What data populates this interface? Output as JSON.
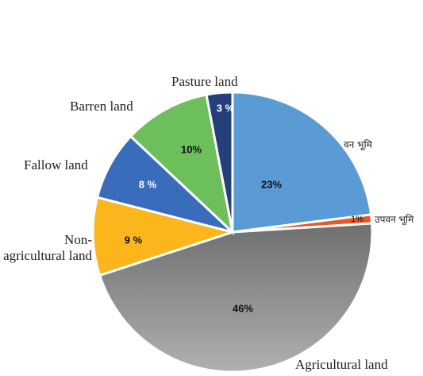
{
  "chart_data": {
    "type": "pie",
    "categories": [
      "वन भूमि",
      "उपवन भूमि",
      "Agricultural land",
      "Non-agricultural land",
      "Fallow land",
      "Barren land",
      "Pasture land"
    ],
    "values": [
      23,
      1,
      46,
      9,
      8,
      10,
      3
    ],
    "value_labels": [
      "23%",
      "1%",
      "46%",
      "9 %",
      "8 %",
      "10%",
      "3 %"
    ],
    "colors": [
      "#5b9bd5",
      "#e8582a",
      "#8c8c8c",
      "#fbb61c",
      "#3a6cbc",
      "#6cbf5a",
      "#243f7a"
    ]
  }
}
